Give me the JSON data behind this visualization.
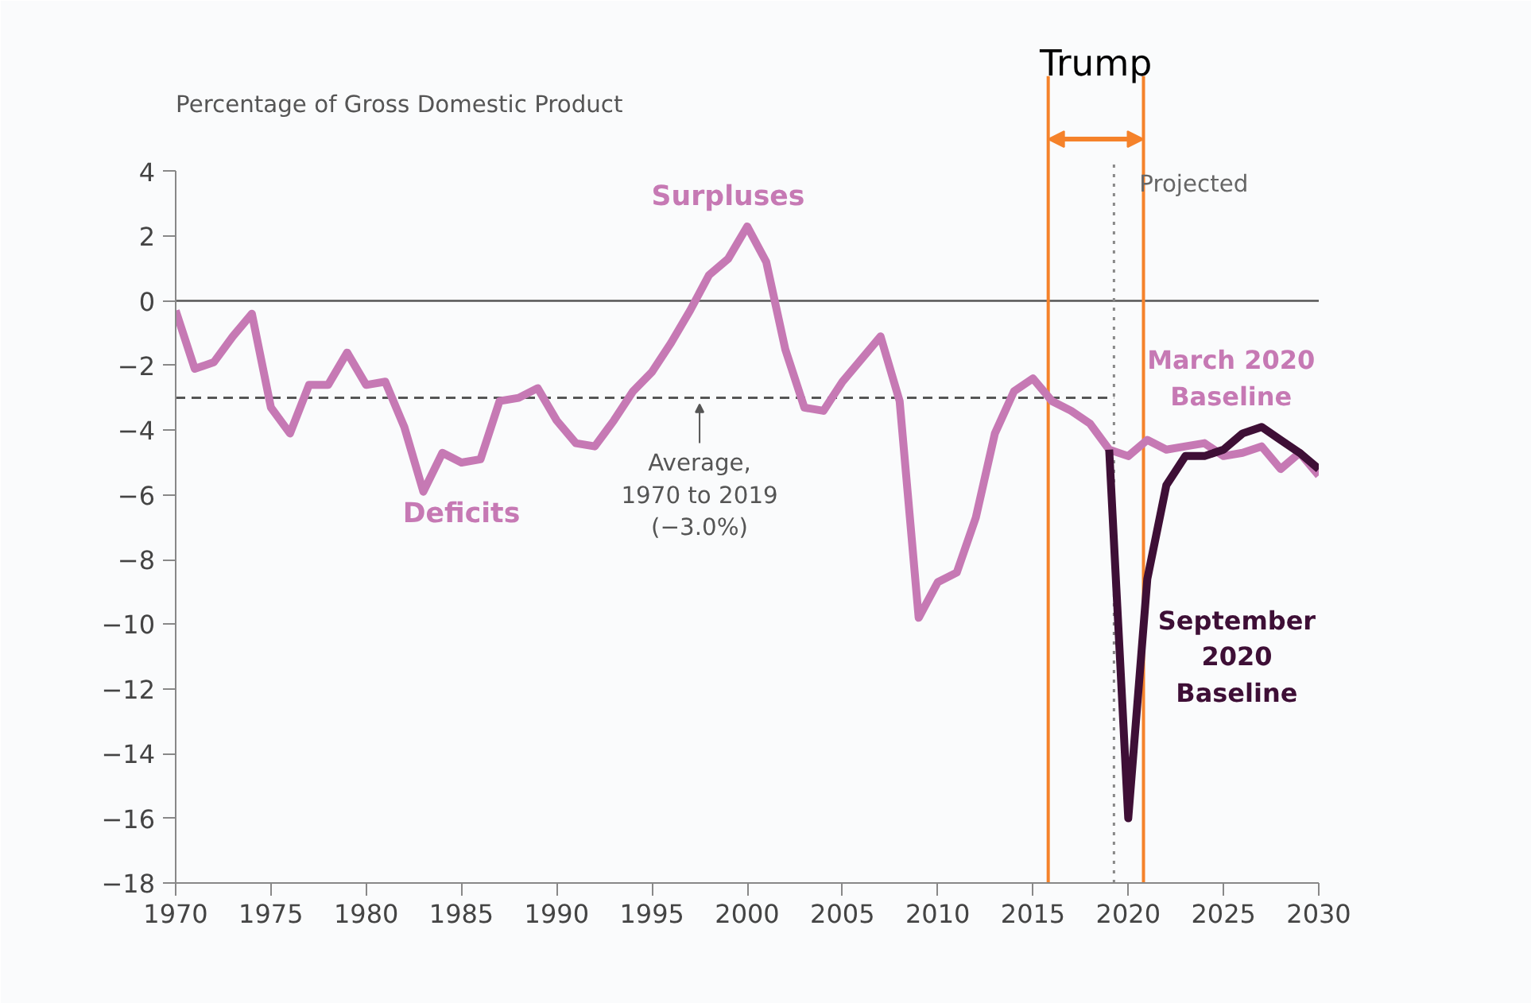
{
  "chart_data": {
    "type": "line",
    "ylabel": "Percentage of Gross Domestic Product",
    "x": [
      1970,
      1971,
      1972,
      1973,
      1974,
      1975,
      1976,
      1977,
      1978,
      1979,
      1980,
      1981,
      1982,
      1983,
      1984,
      1985,
      1986,
      1987,
      1988,
      1989,
      1990,
      1991,
      1992,
      1993,
      1994,
      1995,
      1996,
      1997,
      1998,
      1999,
      2000,
      2001,
      2002,
      2003,
      2004,
      2005,
      2006,
      2007,
      2008,
      2009,
      2010,
      2011,
      2012,
      2013,
      2014,
      2015,
      2016,
      2017,
      2018,
      2019,
      2020,
      2021,
      2022,
      2023,
      2024,
      2025,
      2026,
      2027,
      2028,
      2029,
      2030
    ],
    "series": [
      {
        "name": "March 2020 Baseline",
        "color": "#c679b4",
        "values": [
          -0.3,
          -2.1,
          -1.9,
          -1.1,
          -0.4,
          -3.3,
          -4.1,
          -2.6,
          -2.6,
          -1.6,
          -2.6,
          -2.5,
          -3.9,
          -5.9,
          -4.7,
          -5.0,
          -4.9,
          -3.1,
          -3.0,
          -2.7,
          -3.7,
          -4.4,
          -4.5,
          -3.7,
          -2.8,
          -2.2,
          -1.3,
          -0.3,
          0.8,
          1.3,
          2.3,
          1.2,
          -1.5,
          -3.3,
          -3.4,
          -2.5,
          -1.8,
          -1.1,
          -3.1,
          -9.8,
          -8.7,
          -8.4,
          -6.7,
          -4.1,
          -2.8,
          -2.4,
          -3.1,
          -3.4,
          -3.8,
          -4.6,
          -4.8,
          -4.3,
          -4.6,
          -4.5,
          -4.4,
          -4.8,
          -4.7,
          -4.5,
          -5.2,
          -4.7,
          -5.4
        ]
      },
      {
        "name": "September 2020 Baseline",
        "color": "#3e0f36",
        "x": [
          2019,
          2020,
          2021,
          2022,
          2023,
          2024,
          2025,
          2026,
          2027,
          2028,
          2029,
          2030
        ],
        "values": [
          -4.6,
          -16.0,
          -8.6,
          -5.7,
          -4.8,
          -4.8,
          -4.6,
          -4.1,
          -3.9,
          -4.3,
          -4.7,
          -5.2
        ]
      }
    ],
    "xlim": [
      1970,
      2030
    ],
    "xticks": [
      1970,
      1975,
      1980,
      1985,
      1990,
      1995,
      2000,
      2005,
      2010,
      2015,
      2020,
      2025,
      2030
    ],
    "ylim": [
      -18,
      4
    ],
    "yticks": [
      4,
      2,
      0,
      -2,
      -4,
      -6,
      -8,
      -10,
      -12,
      -14,
      -16,
      -18
    ],
    "ref_lines": [
      {
        "axis": "y",
        "value": 0,
        "color": "#555555",
        "line_style": "solid"
      },
      {
        "axis": "y",
        "value": -3.0,
        "color": "#555555",
        "line_style": "dashed"
      },
      {
        "axis": "x",
        "value": 2019.25,
        "label": "Projected",
        "color": "#888888",
        "line_style": "dotted"
      },
      {
        "axis": "x",
        "value": 2015.8,
        "color": "#f5822a",
        "line_style": "solid"
      },
      {
        "axis": "x",
        "value": 2020.8,
        "color": "#f5822a",
        "line_style": "solid"
      }
    ],
    "annotations": [
      "Trump",
      "Surpluses",
      "Deficits",
      {
        "text": "Average,\n1970 to 2019\n(−3.0%)",
        "x": 1997.5,
        "y": -3.0
      }
    ],
    "grid": false,
    "marker": "none",
    "line_style": "solid"
  }
}
